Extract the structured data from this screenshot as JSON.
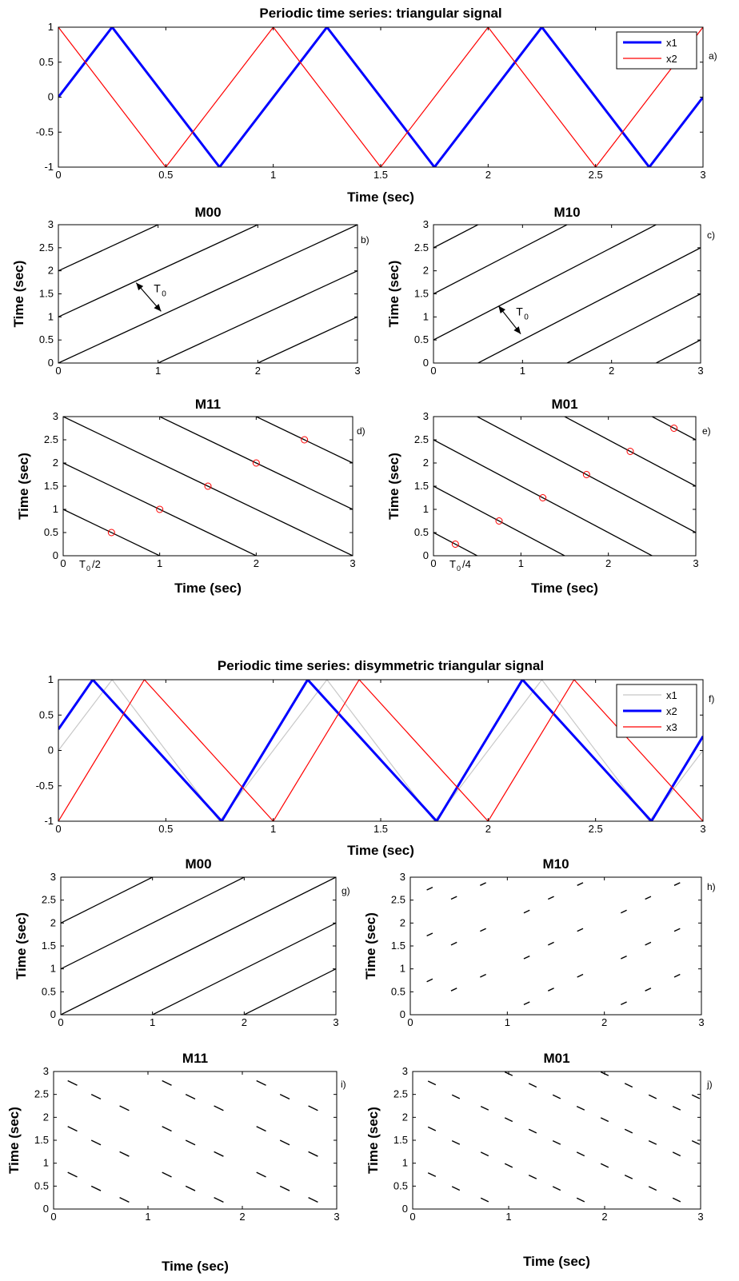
{
  "chart_data": [
    {
      "id": "a",
      "type": "line",
      "title": "Periodic time series: triangular signal",
      "xlabel": "Time (sec)",
      "ylabel": "",
      "panel_label": "a)",
      "xlim": [
        0,
        3
      ],
      "ylim": [
        -1,
        1
      ],
      "xticks": [
        0,
        0.5,
        1,
        1.5,
        2,
        2.5,
        3
      ],
      "xtick_labels": [
        "0",
        "0.5",
        "1",
        "1.5",
        "2",
        "2.5",
        "3"
      ],
      "yticks": [
        -1,
        -0.5,
        0,
        0.5,
        1
      ],
      "ytick_labels": [
        "-1",
        "-0.5",
        "0",
        "0.5",
        "1"
      ],
      "legend": {
        "position": "top-right"
      },
      "series": [
        {
          "name": "x1",
          "color": "#0000ff",
          "width": "thick",
          "x": [
            0,
            0.25,
            0.75,
            1.25,
            1.75,
            2.25,
            2.75,
            3
          ],
          "y": [
            0,
            1,
            -1,
            1,
            -1,
            1,
            -1,
            0
          ]
        },
        {
          "name": "x2",
          "color": "#ff0000",
          "width": "thin",
          "x": [
            0,
            0.5,
            1,
            1.5,
            2,
            2.5,
            3
          ],
          "y": [
            1,
            -1,
            1,
            -1,
            1,
            -1,
            1
          ]
        }
      ]
    },
    {
      "id": "b",
      "type": "line",
      "title": "M00",
      "xlabel": "",
      "ylabel": "Time (sec)",
      "panel_label": "b)",
      "xlim": [
        0,
        3
      ],
      "ylim": [
        0,
        3
      ],
      "xticks": [
        0,
        1,
        2,
        3
      ],
      "xtick_labels": [
        "0",
        "1",
        "2",
        "3"
      ],
      "yticks": [
        0,
        0.5,
        1,
        1.5,
        2,
        2.5,
        3
      ],
      "ytick_labels": [
        "0",
        "0.5",
        "1",
        "1.5",
        "2",
        "2.5",
        "3"
      ],
      "diagonal_lines": {
        "slope": 1,
        "intercepts": [
          -2,
          -1,
          0,
          1,
          2
        ]
      },
      "annotation": {
        "text": "T",
        "sub": "0"
      }
    },
    {
      "id": "c",
      "type": "line",
      "title": "M10",
      "xlabel": "",
      "ylabel": "Time (sec)",
      "panel_label": "c)",
      "xlim": [
        0,
        3
      ],
      "ylim": [
        0,
        3
      ],
      "xticks": [
        0,
        1,
        2,
        3
      ],
      "xtick_labels": [
        "0",
        "1",
        "2",
        "3"
      ],
      "yticks": [
        0,
        0.5,
        1,
        1.5,
        2,
        2.5,
        3
      ],
      "ytick_labels": [
        "0",
        "0.5",
        "1",
        "1.5",
        "2",
        "2.5",
        "3"
      ],
      "diagonal_lines": {
        "slope": 1,
        "intercepts": [
          -2.5,
          -1.5,
          -0.5,
          0.5,
          1.5,
          2.5
        ]
      },
      "annotation": {
        "text": "T",
        "sub": "0"
      }
    },
    {
      "id": "d",
      "type": "line",
      "title": "M11",
      "xlabel": "Time (sec)",
      "ylabel": "Time (sec)",
      "panel_label": "d)",
      "xlim": [
        0,
        3
      ],
      "ylim": [
        0,
        3
      ],
      "xticks": [
        0,
        1,
        2,
        3
      ],
      "xtick_labels": [
        "0",
        "1",
        "2",
        "3"
      ],
      "yticks": [
        0,
        0.5,
        1,
        1.5,
        2,
        2.5,
        3
      ],
      "ytick_labels": [
        "0",
        "0.5",
        "1",
        "1.5",
        "2",
        "2.5",
        "3"
      ],
      "diagonal_lines": {
        "slope": -1,
        "intercepts": [
          1,
          2,
          3,
          4,
          5
        ]
      },
      "markers": {
        "color": "#ff0000",
        "x": [
          0.5,
          1,
          1.5,
          2,
          2.5
        ],
        "y": [
          0.5,
          1,
          1.5,
          2,
          2.5
        ]
      },
      "annotation": {
        "text": "T",
        "sub": "0",
        "suffix": "/2"
      }
    },
    {
      "id": "e",
      "type": "line",
      "title": "M01",
      "xlabel": "Time (sec)",
      "ylabel": "Time (sec)",
      "panel_label": "e)",
      "xlim": [
        0,
        3
      ],
      "ylim": [
        0,
        3
      ],
      "xticks": [
        0,
        1,
        2,
        3
      ],
      "xtick_labels": [
        "0",
        "1",
        "2",
        "3"
      ],
      "yticks": [
        0,
        0.5,
        1,
        1.5,
        2,
        2.5,
        3
      ],
      "ytick_labels": [
        "0",
        "0.5",
        "1",
        "1.5",
        "2",
        "2.5",
        "3"
      ],
      "diagonal_lines": {
        "slope": -1,
        "intercepts": [
          0.5,
          1.5,
          2.5,
          3.5,
          4.5,
          5.5
        ]
      },
      "markers": {
        "color": "#ff0000",
        "x": [
          0.25,
          0.75,
          1.25,
          1.75,
          2.25,
          2.75
        ],
        "y": [
          0.25,
          0.75,
          1.25,
          1.75,
          2.25,
          2.75
        ]
      },
      "annotation": {
        "text": "T",
        "sub": "0",
        "suffix": "/4"
      }
    },
    {
      "id": "f",
      "type": "line",
      "title": "Periodic time series: disymmetric triangular signal",
      "xlabel": "Time (sec)",
      "ylabel": "",
      "panel_label": "f)",
      "xlim": [
        0,
        3
      ],
      "ylim": [
        -1,
        1
      ],
      "xticks": [
        0,
        0.5,
        1,
        1.5,
        2,
        2.5,
        3
      ],
      "xtick_labels": [
        "0",
        "0.5",
        "1",
        "1.5",
        "2",
        "2.5",
        "3"
      ],
      "yticks": [
        -1,
        -0.5,
        0,
        0.5,
        1
      ],
      "ytick_labels": [
        "-1",
        "-0.5",
        "0",
        "0.5",
        "1"
      ],
      "legend": {
        "position": "top-right"
      },
      "series": [
        {
          "name": "x1",
          "color": "#c8c8c8",
          "width": "thin",
          "x": [
            0,
            0.25,
            0.75,
            1.25,
            1.75,
            2.25,
            2.75,
            3
          ],
          "y": [
            0,
            1,
            -1,
            1,
            -1,
            1,
            -1,
            0
          ]
        },
        {
          "name": "x2",
          "color": "#0000ff",
          "width": "thick",
          "x": [
            0,
            0.16,
            0.76,
            1.16,
            1.76,
            2.16,
            2.76,
            3
          ],
          "y": [
            0.3,
            1,
            -1,
            1,
            -1,
            1,
            -1,
            0.2
          ]
        },
        {
          "name": "x3",
          "color": "#ff0000",
          "width": "thin",
          "x": [
            0,
            0.4,
            1,
            1.4,
            2,
            2.4,
            3
          ],
          "y": [
            -1,
            1,
            -1,
            1,
            -1,
            1,
            -1
          ]
        }
      ]
    },
    {
      "id": "g",
      "type": "line",
      "title": "M00",
      "xlabel": "",
      "ylabel": "Time (sec)",
      "panel_label": "g)",
      "xlim": [
        0,
        3
      ],
      "ylim": [
        0,
        3
      ],
      "xticks": [
        0,
        1,
        2,
        3
      ],
      "xtick_labels": [
        "0",
        "1",
        "2",
        "3"
      ],
      "yticks": [
        0,
        0.5,
        1,
        1.5,
        2,
        2.5,
        3
      ],
      "ytick_labels": [
        "0",
        "0.5",
        "1",
        "1.5",
        "2",
        "2.5",
        "3"
      ],
      "diagonal_lines": {
        "slope": 1,
        "intercepts": [
          -2,
          -1,
          0,
          1,
          2
        ]
      }
    },
    {
      "id": "h",
      "type": "scatter",
      "title": "M10",
      "xlabel": "",
      "ylabel": "Time (sec)",
      "panel_label": "h)",
      "xlim": [
        0,
        3
      ],
      "ylim": [
        0,
        3
      ],
      "xticks": [
        0,
        1,
        2,
        3
      ],
      "xtick_labels": [
        "0",
        "1",
        "2",
        "3"
      ],
      "yticks": [
        0,
        0.5,
        1,
        1.5,
        2,
        2.5,
        3
      ],
      "ytick_labels": [
        "0",
        "0.5",
        "1",
        "1.5",
        "2",
        "2.5",
        "3"
      ],
      "dashes": {
        "slope": 1,
        "length": 0.06,
        "x": [
          0.2,
          0.45,
          0.75,
          1.2,
          1.45,
          1.75,
          2.2,
          2.45,
          2.75,
          0.2,
          0.45,
          0.75,
          1.2,
          1.45,
          1.75,
          2.2,
          2.45,
          2.75,
          0.2,
          0.45,
          0.75,
          1.2,
          1.45,
          1.75,
          2.2,
          2.45,
          2.75
        ],
        "y": [
          2.75,
          2.55,
          2.85,
          2.25,
          2.55,
          2.85,
          2.25,
          2.55,
          2.85,
          1.75,
          1.55,
          1.85,
          1.25,
          1.55,
          1.85,
          1.25,
          1.55,
          1.85,
          0.75,
          0.55,
          0.85,
          0.25,
          0.55,
          0.85,
          0.25,
          0.55,
          0.85
        ]
      }
    },
    {
      "id": "i",
      "type": "scatter",
      "title": "M11",
      "xlabel": "Time (sec)",
      "ylabel": "Time (sec)",
      "panel_label": "i)",
      "xlim": [
        0,
        3
      ],
      "ylim": [
        0,
        3
      ],
      "xticks": [
        0,
        1,
        2,
        3
      ],
      "xtick_labels": [
        "0",
        "1",
        "2",
        "3"
      ],
      "yticks": [
        0,
        0.5,
        1,
        1.5,
        2,
        2.5,
        3
      ],
      "ytick_labels": [
        "0",
        "0.5",
        "1",
        "1.5",
        "2",
        "2.5",
        "3"
      ],
      "dashes": {
        "slope": -1,
        "length": 0.1,
        "x": [
          0.2,
          0.45,
          0.75,
          1.2,
          1.45,
          1.75,
          2.2,
          2.45,
          2.75,
          0.2,
          0.45,
          0.75,
          1.2,
          1.45,
          1.75,
          2.2,
          2.45,
          2.75,
          0.2,
          0.45,
          0.75,
          1.2,
          1.45,
          1.75,
          2.2,
          2.45,
          2.75
        ],
        "y": [
          2.75,
          2.45,
          2.2,
          2.75,
          2.45,
          2.2,
          2.75,
          2.45,
          2.2,
          1.75,
          1.45,
          1.2,
          1.75,
          1.45,
          1.2,
          1.75,
          1.45,
          1.2,
          0.75,
          0.45,
          0.2,
          0.75,
          0.45,
          0.2,
          0.75,
          0.45,
          0.2
        ]
      }
    },
    {
      "id": "j",
      "type": "scatter",
      "title": "M01",
      "xlabel": "Time (sec)",
      "ylabel": "Time (sec)",
      "panel_label": "j)",
      "xlim": [
        0,
        3
      ],
      "ylim": [
        0,
        3
      ],
      "xticks": [
        0,
        1,
        2,
        3
      ],
      "xtick_labels": [
        "0",
        "1",
        "2",
        "3"
      ],
      "yticks": [
        0,
        0.5,
        1,
        1.5,
        2,
        2.5,
        3
      ],
      "ytick_labels": [
        "0",
        "0.5",
        "1",
        "1.5",
        "2",
        "2.5",
        "3"
      ],
      "dashes": {
        "slope": -1,
        "length": 0.08,
        "x": [
          0.2,
          0.45,
          0.75,
          1.0,
          1.25,
          1.5,
          1.75,
          2.0,
          2.25,
          2.5,
          2.75,
          2.95,
          0.2,
          0.45,
          0.75,
          1.0,
          1.25,
          1.5,
          1.75,
          2.0,
          2.25,
          2.5,
          2.75,
          2.95,
          0.2,
          0.45,
          0.75,
          1.0,
          1.25,
          1.5,
          1.75,
          2.0,
          2.25,
          2.5,
          2.75
        ],
        "y": [
          2.75,
          2.45,
          2.2,
          2.95,
          2.7,
          2.45,
          2.2,
          2.95,
          2.7,
          2.45,
          2.2,
          2.45,
          1.75,
          1.45,
          1.2,
          1.95,
          1.7,
          1.45,
          1.2,
          1.95,
          1.7,
          1.45,
          1.2,
          1.45,
          0.75,
          0.45,
          0.2,
          0.95,
          0.7,
          0.45,
          0.2,
          0.95,
          0.7,
          0.45,
          0.2
        ]
      }
    }
  ]
}
